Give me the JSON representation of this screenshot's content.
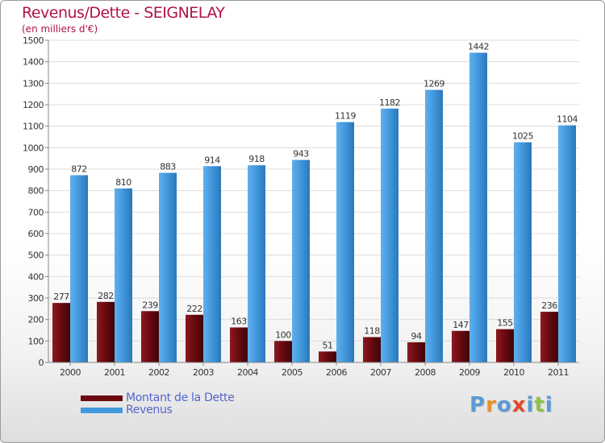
{
  "title": "Revenus/Dette - SEIGNELAY",
  "subtitle": "(en milliers d'€)",
  "colors": {
    "title": "#b0124a",
    "dette": "#6b0a10",
    "revenus": "#4499dd",
    "legend_text": "#5566cc"
  },
  "logo": {
    "text": "Proxiti",
    "letter_colors": [
      "#5a9ad6",
      "#e8912b",
      "#5a9ad6",
      "#e04a2a",
      "#5a9ad6",
      "#8bc34a",
      "#5a9ad6"
    ]
  },
  "chart_data": {
    "type": "bar",
    "title": "Revenus/Dette - SEIGNELAY",
    "subtitle": "(en milliers d'€)",
    "categories": [
      "2000",
      "2001",
      "2002",
      "2003",
      "2004",
      "2005",
      "2006",
      "2007",
      "2008",
      "2009",
      "2010",
      "2011"
    ],
    "series": [
      {
        "name": "Montant de la Dette",
        "color": "#6b0a10",
        "values": [
          277,
          282,
          239,
          222,
          163,
          100,
          51,
          118,
          94,
          147,
          155,
          236
        ]
      },
      {
        "name": "Revenus",
        "color": "#4499dd",
        "values": [
          872,
          810,
          883,
          914,
          918,
          943,
          1119,
          1182,
          1269,
          1442,
          1025,
          1104
        ]
      }
    ],
    "ylim": [
      0,
      1500
    ],
    "yticks": [
      0,
      100,
      200,
      300,
      400,
      500,
      600,
      700,
      800,
      900,
      1000,
      1100,
      1200,
      1300,
      1400,
      1500
    ],
    "grid": true,
    "legend_position": "bottom-left"
  }
}
